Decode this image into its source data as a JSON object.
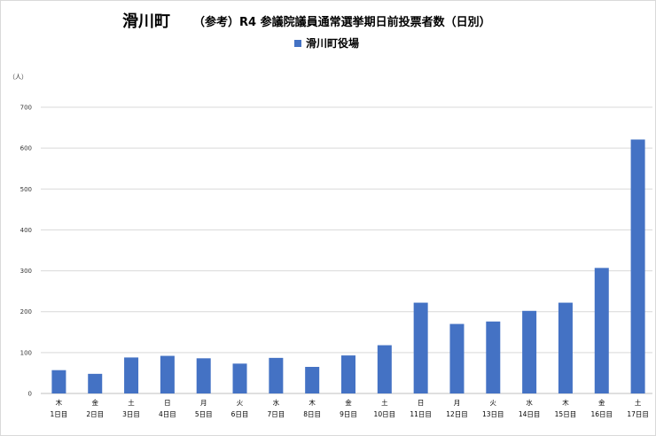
{
  "chart_data": {
    "type": "bar",
    "title": "滑川町",
    "subtitle": "（参考）R4 参議院議員通常選挙期日前投票者数（日別）",
    "unit_label": "（人）",
    "series": [
      {
        "name": "滑川町役場",
        "values": [
          57,
          48,
          88,
          92,
          86,
          73,
          87,
          65,
          93,
          118,
          222,
          170,
          176,
          202,
          222,
          307,
          621
        ]
      }
    ],
    "categories": [
      {
        "weekday": "木",
        "day": "1日目"
      },
      {
        "weekday": "金",
        "day": "2日目"
      },
      {
        "weekday": "土",
        "day": "3日目"
      },
      {
        "weekday": "日",
        "day": "4日目"
      },
      {
        "weekday": "月",
        "day": "5日目"
      },
      {
        "weekday": "火",
        "day": "6日目"
      },
      {
        "weekday": "水",
        "day": "7日目"
      },
      {
        "weekday": "木",
        "day": "8日目"
      },
      {
        "weekday": "金",
        "day": "9日目"
      },
      {
        "weekday": "土",
        "day": "10日目"
      },
      {
        "weekday": "日",
        "day": "11日目"
      },
      {
        "weekday": "月",
        "day": "12日目"
      },
      {
        "weekday": "火",
        "day": "13日目"
      },
      {
        "weekday": "水",
        "day": "14日目"
      },
      {
        "weekday": "木",
        "day": "15日目"
      },
      {
        "weekday": "金",
        "day": "16日目"
      },
      {
        "weekday": "土",
        "day": "17日目"
      }
    ],
    "ylim": [
      0,
      700
    ],
    "yticks": [
      0,
      100,
      200,
      300,
      400,
      500,
      600,
      700
    ],
    "grid": true,
    "legend_position": "top-center",
    "colors": {
      "bar": "#4472c4",
      "grid": "#d9d9d9"
    }
  }
}
